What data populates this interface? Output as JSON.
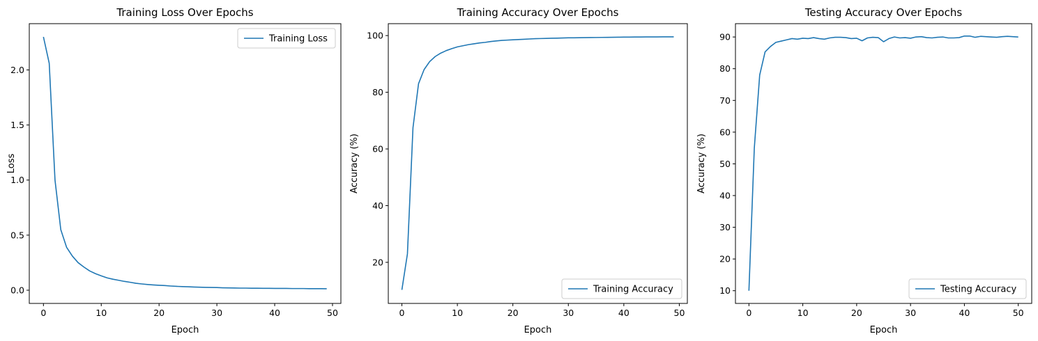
{
  "chart_data": [
    {
      "type": "line",
      "title": "Training Loss Over Epochs",
      "xlabel": "Epoch",
      "ylabel": "Loss",
      "xlim": [
        -2.45,
        51.45
      ],
      "ylim": [
        -0.12,
        2.42
      ],
      "xticks": [
        0,
        10,
        20,
        30,
        40,
        50
      ],
      "yticks": [
        0.0,
        0.5,
        1.0,
        1.5,
        2.0
      ],
      "ytick_labels": [
        "0.0",
        "0.5",
        "1.0",
        "1.5",
        "2.0"
      ],
      "legend_position": "upper-right",
      "grid": false,
      "series": [
        {
          "name": "Training Loss",
          "color": "#1f77b4",
          "x": [
            0,
            1,
            2,
            3,
            4,
            5,
            6,
            7,
            8,
            9,
            10,
            11,
            12,
            13,
            14,
            15,
            16,
            17,
            18,
            19,
            20,
            21,
            22,
            23,
            24,
            25,
            26,
            27,
            28,
            29,
            30,
            31,
            32,
            33,
            34,
            35,
            36,
            37,
            38,
            39,
            40,
            41,
            42,
            43,
            44,
            45,
            46,
            47,
            48,
            49
          ],
          "y": [
            2.3,
            2.06,
            1.0,
            0.55,
            0.39,
            0.31,
            0.25,
            0.21,
            0.175,
            0.15,
            0.13,
            0.112,
            0.1,
            0.09,
            0.08,
            0.072,
            0.063,
            0.057,
            0.052,
            0.048,
            0.045,
            0.042,
            0.038,
            0.035,
            0.033,
            0.031,
            0.029,
            0.027,
            0.026,
            0.025,
            0.024,
            0.022,
            0.021,
            0.02,
            0.019,
            0.019,
            0.018,
            0.018,
            0.017,
            0.017,
            0.016,
            0.016,
            0.016,
            0.015,
            0.015,
            0.015,
            0.014,
            0.014,
            0.014,
            0.013
          ]
        }
      ]
    },
    {
      "type": "line",
      "title": "Training Accuracy Over Epochs",
      "xlabel": "Epoch",
      "ylabel": "Accuracy (%)",
      "xlim": [
        -2.45,
        51.45
      ],
      "ylim": [
        5.5,
        104.2
      ],
      "xticks": [
        0,
        10,
        20,
        30,
        40,
        50
      ],
      "yticks": [
        20,
        40,
        60,
        80,
        100
      ],
      "ytick_labels": [
        "20",
        "40",
        "60",
        "80",
        "100"
      ],
      "legend_position": "lower-right",
      "grid": false,
      "series": [
        {
          "name": "Training Accuracy",
          "color": "#1f77b4",
          "x": [
            0,
            1,
            2,
            3,
            4,
            5,
            6,
            7,
            8,
            9,
            10,
            11,
            12,
            13,
            14,
            15,
            16,
            17,
            18,
            19,
            20,
            21,
            22,
            23,
            24,
            25,
            26,
            27,
            28,
            29,
            30,
            31,
            32,
            33,
            34,
            35,
            36,
            37,
            38,
            39,
            40,
            41,
            42,
            43,
            44,
            45,
            46,
            47,
            48,
            49
          ],
          "y": [
            10.3,
            23.0,
            67.5,
            83.0,
            88.0,
            90.8,
            92.6,
            93.8,
            94.7,
            95.4,
            96.0,
            96.4,
            96.8,
            97.1,
            97.4,
            97.6,
            97.9,
            98.1,
            98.3,
            98.4,
            98.5,
            98.6,
            98.7,
            98.8,
            98.9,
            98.95,
            99.0,
            99.05,
            99.1,
            99.15,
            99.2,
            99.22,
            99.25,
            99.28,
            99.3,
            99.32,
            99.35,
            99.37,
            99.4,
            99.42,
            99.45,
            99.46,
            99.48,
            99.5,
            99.51,
            99.52,
            99.53,
            99.54,
            99.55,
            99.56
          ]
        }
      ]
    },
    {
      "type": "line",
      "title": "Testing Accuracy Over Epochs",
      "xlabel": "Epoch",
      "ylabel": "Accuracy (%)",
      "xlim": [
        -2.5,
        52.5
      ],
      "ylim": [
        5.99,
        94.2
      ],
      "xticks": [
        0,
        10,
        20,
        30,
        40,
        50
      ],
      "yticks": [
        10,
        20,
        30,
        40,
        50,
        60,
        70,
        80,
        90
      ],
      "ytick_labels": [
        "10",
        "20",
        "30",
        "40",
        "50",
        "60",
        "70",
        "80",
        "90"
      ],
      "legend_position": "lower-right",
      "grid": false,
      "series": [
        {
          "name": "Testing Accuracy",
          "color": "#1f77b4",
          "x": [
            0,
            1,
            2,
            3,
            4,
            5,
            6,
            7,
            8,
            9,
            10,
            11,
            12,
            13,
            14,
            15,
            16,
            17,
            18,
            19,
            20,
            21,
            22,
            23,
            24,
            25,
            26,
            27,
            28,
            29,
            30,
            31,
            32,
            33,
            34,
            35,
            36,
            37,
            38,
            39,
            40,
            41,
            42,
            43,
            44,
            45,
            46,
            47,
            48,
            49,
            50
          ],
          "y": [
            10.0,
            55.0,
            78.0,
            85.3,
            87.0,
            88.3,
            88.7,
            89.1,
            89.5,
            89.3,
            89.6,
            89.5,
            89.8,
            89.5,
            89.3,
            89.7,
            89.9,
            89.9,
            89.8,
            89.5,
            89.6,
            88.8,
            89.7,
            89.9,
            89.8,
            88.5,
            89.5,
            90.0,
            89.7,
            89.8,
            89.6,
            90.0,
            90.1,
            89.8,
            89.7,
            89.9,
            90.0,
            89.7,
            89.7,
            89.8,
            90.3,
            90.3,
            89.9,
            90.2,
            90.1,
            90.0,
            89.9,
            90.1,
            90.2,
            90.1,
            90.0
          ]
        }
      ]
    }
  ]
}
